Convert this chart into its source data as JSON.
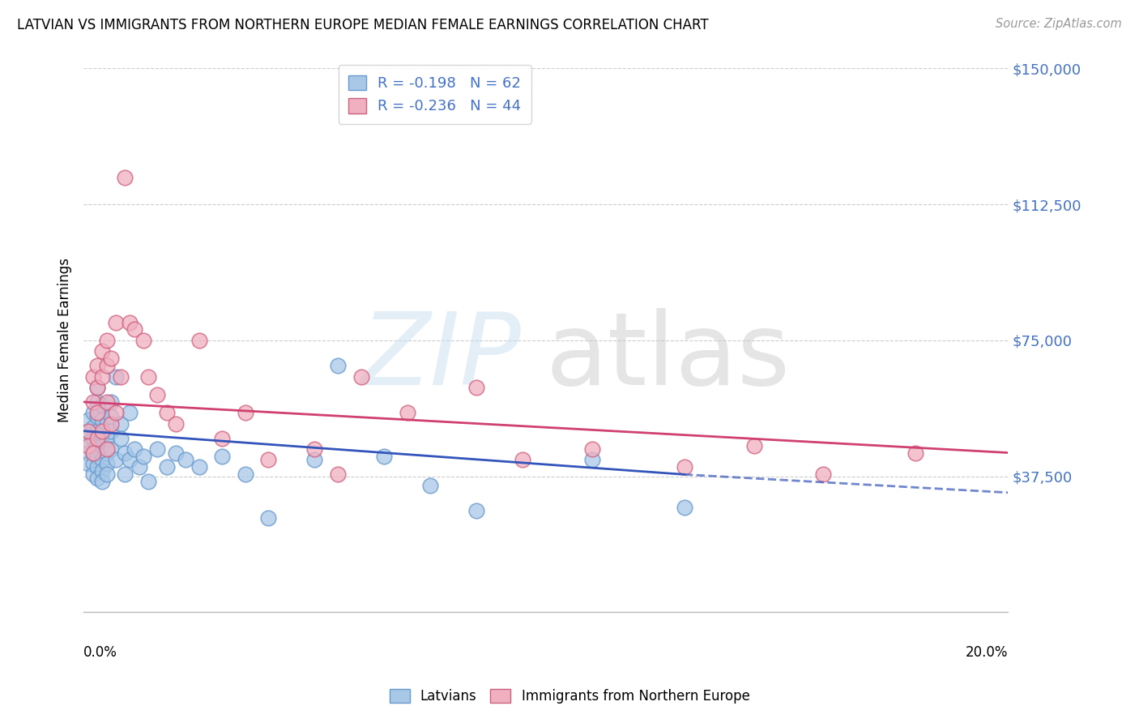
{
  "title": "LATVIAN VS IMMIGRANTS FROM NORTHERN EUROPE MEDIAN FEMALE EARNINGS CORRELATION CHART",
  "source": "Source: ZipAtlas.com",
  "ylabel": "Median Female Earnings",
  "yticks": [
    0,
    37500,
    75000,
    112500,
    150000
  ],
  "ytick_labels": [
    "",
    "$37,500",
    "$75,000",
    "$112,500",
    "$150,000"
  ],
  "xmin": 0.0,
  "xmax": 0.2,
  "ymin": 0,
  "ymax": 150000,
  "latvian_color": "#a8c8e8",
  "latvian_edge": "#6699cc",
  "immigrant_color": "#f0b0c0",
  "immigrant_edge": "#d06080",
  "trend_latvian_color": "#3355bb",
  "trend_immigrant_color": "#d04070",
  "R_latvian": -0.198,
  "N_latvian": 62,
  "R_immigrant": -0.236,
  "N_immigrant": 44,
  "latvian_x": [
    0.001,
    0.001,
    0.001,
    0.001,
    0.001,
    0.002,
    0.002,
    0.002,
    0.002,
    0.002,
    0.002,
    0.003,
    0.003,
    0.003,
    0.003,
    0.003,
    0.003,
    0.003,
    0.003,
    0.004,
    0.004,
    0.004,
    0.004,
    0.004,
    0.004,
    0.004,
    0.005,
    0.005,
    0.005,
    0.005,
    0.005,
    0.006,
    0.006,
    0.006,
    0.006,
    0.007,
    0.007,
    0.008,
    0.008,
    0.009,
    0.009,
    0.01,
    0.01,
    0.011,
    0.012,
    0.013,
    0.014,
    0.016,
    0.018,
    0.02,
    0.022,
    0.025,
    0.03,
    0.035,
    0.04,
    0.05,
    0.055,
    0.065,
    0.075,
    0.085,
    0.11,
    0.13
  ],
  "latvian_y": [
    47000,
    50000,
    53000,
    44000,
    41000,
    55000,
    51000,
    48000,
    44000,
    41000,
    38000,
    62000,
    58000,
    54000,
    50000,
    46000,
    43000,
    40000,
    37000,
    57000,
    53000,
    49000,
    46000,
    42000,
    39000,
    36000,
    52000,
    48000,
    44000,
    41000,
    38000,
    58000,
    54000,
    50000,
    45000,
    65000,
    42000,
    52000,
    48000,
    44000,
    38000,
    55000,
    42000,
    45000,
    40000,
    43000,
    36000,
    45000,
    40000,
    44000,
    42000,
    40000,
    43000,
    38000,
    26000,
    42000,
    68000,
    43000,
    35000,
    28000,
    42000,
    29000
  ],
  "immigrant_x": [
    0.001,
    0.001,
    0.002,
    0.002,
    0.002,
    0.003,
    0.003,
    0.003,
    0.003,
    0.004,
    0.004,
    0.004,
    0.005,
    0.005,
    0.005,
    0.005,
    0.006,
    0.006,
    0.007,
    0.007,
    0.008,
    0.009,
    0.01,
    0.011,
    0.013,
    0.014,
    0.016,
    0.018,
    0.02,
    0.025,
    0.03,
    0.035,
    0.04,
    0.05,
    0.055,
    0.06,
    0.07,
    0.085,
    0.095,
    0.11,
    0.13,
    0.145,
    0.16,
    0.18
  ],
  "immigrant_y": [
    50000,
    46000,
    65000,
    58000,
    44000,
    68000,
    62000,
    55000,
    48000,
    72000,
    65000,
    50000,
    75000,
    68000,
    58000,
    45000,
    70000,
    52000,
    80000,
    55000,
    65000,
    120000,
    80000,
    78000,
    75000,
    65000,
    60000,
    55000,
    52000,
    75000,
    48000,
    55000,
    42000,
    45000,
    38000,
    65000,
    55000,
    62000,
    42000,
    45000,
    40000,
    46000,
    38000,
    44000
  ],
  "trend_lat_x0": 0.0,
  "trend_lat_y0": 50000,
  "trend_lat_x1": 0.13,
  "trend_lat_y1": 38000,
  "trend_lat_dash_x1": 0.2,
  "trend_lat_dash_y1": 33000,
  "trend_imm_x0": 0.0,
  "trend_imm_y0": 58000,
  "trend_imm_x1": 0.2,
  "trend_imm_y1": 44000
}
